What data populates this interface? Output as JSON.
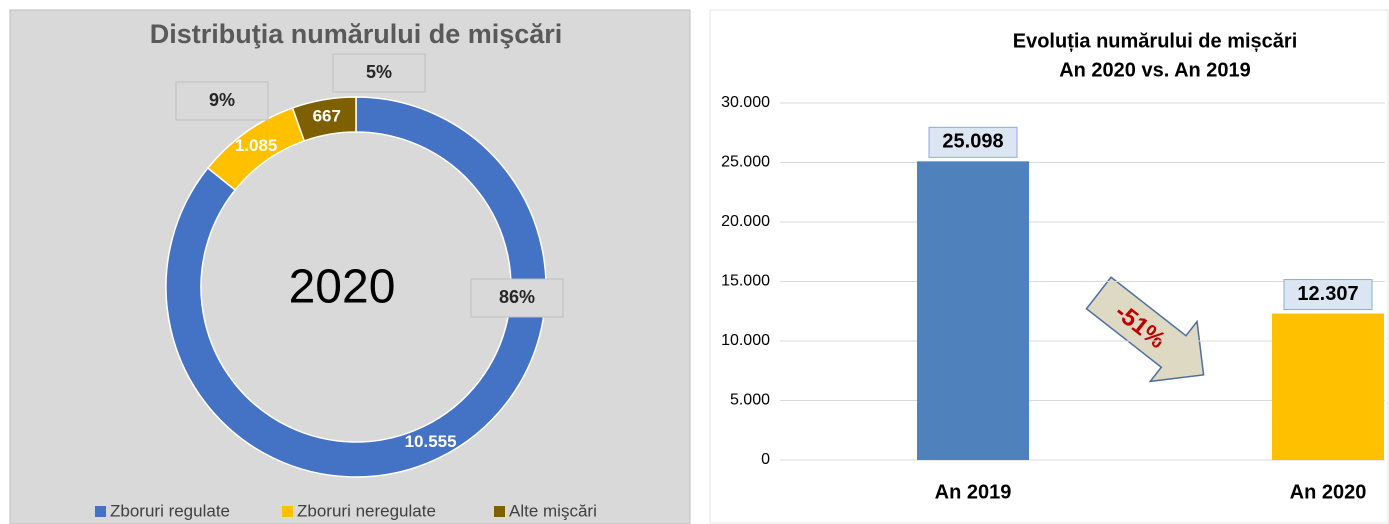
{
  "chart_data": [
    {
      "type": "donut",
      "title": "Distribuţia numărului de mişcări",
      "center_label": "2020",
      "categories": [
        "Zboruri regulate",
        "Zboruri neregulate",
        "Alte mişcări"
      ],
      "values": [
        10555,
        1085,
        667
      ],
      "value_labels": [
        "10.555",
        "1.085",
        "667"
      ],
      "share_labels": [
        "86%",
        "9%",
        "5%"
      ],
      "colors": [
        "#4472c4",
        "#ffc000",
        "#7f6000"
      ],
      "legend": "bottom"
    },
    {
      "type": "bar",
      "title": "Evoluția numărului de mișcări",
      "subtitle": "An 2020 vs. An 2019",
      "categories": [
        "An 2019",
        "An 2020"
      ],
      "values": [
        25098,
        12307
      ],
      "value_labels": [
        "25.098",
        "12.307"
      ],
      "colors": [
        "#4f81bd",
        "#ffc000"
      ],
      "ylim": [
        0,
        30000
      ],
      "yticks": [
        0,
        {
          "value": 5000,
          "label": "5.000"
        },
        {
          "value": 10000,
          "label": "10.000"
        },
        {
          "value": 15000,
          "label": "15.000"
        },
        {
          "value": 20000,
          "label": "20.000"
        },
        {
          "value": 25000,
          "label": "25.000"
        },
        {
          "value": 30000,
          "label": "30.000"
        }
      ],
      "grid": true,
      "annotation": "-51%"
    }
  ]
}
